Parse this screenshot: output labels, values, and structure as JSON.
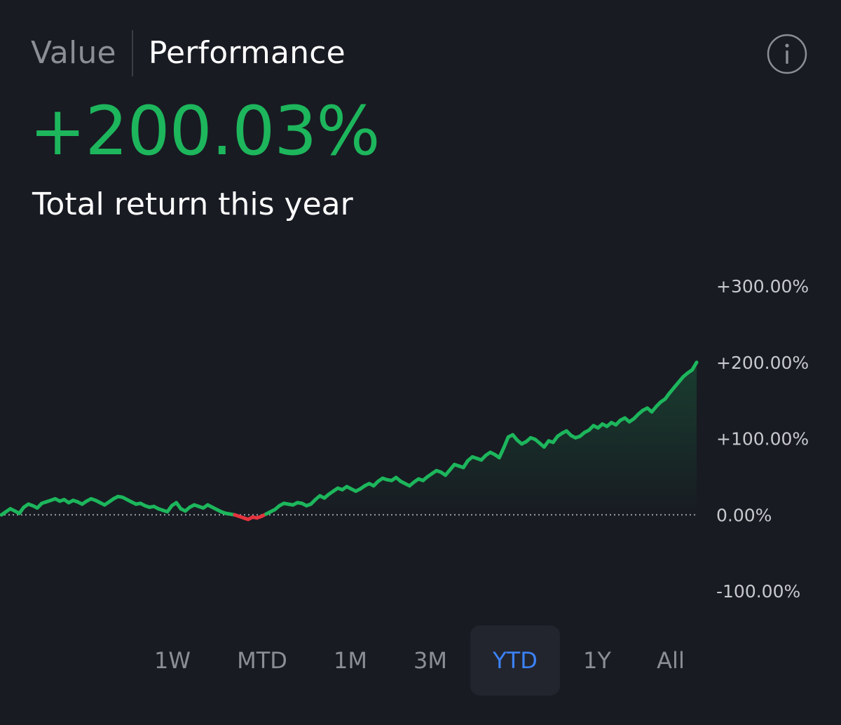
{
  "tabs": [
    {
      "label": "Value",
      "active": false
    },
    {
      "label": "Performance",
      "active": true
    }
  ],
  "info_icon": "info-circle-icon",
  "headline": {
    "value": "+200.03%",
    "caption": "Total return this year"
  },
  "colors": {
    "background": "#181b22",
    "positive": "#1db65c",
    "negative": "#e5343f",
    "accent": "#3b82f6",
    "muted_text": "#8b8e94"
  },
  "ranges": [
    "1W",
    "MTD",
    "1M",
    "3M",
    "YTD",
    "1Y",
    "All"
  ],
  "selected_range": "YTD",
  "chart_data": {
    "type": "line",
    "title": "",
    "xlabel": "",
    "ylabel": "",
    "ylim": [
      -100,
      300
    ],
    "y_ticks": [
      "+300.00%",
      "+200.00%",
      "+100.00%",
      "0.00%",
      "-100.00%"
    ],
    "y_tick_values": [
      300,
      200,
      100,
      0,
      -100
    ],
    "baseline": 0,
    "grid": false,
    "legend": "none",
    "series": [
      {
        "values": [
          0,
          4,
          8,
          5,
          2,
          10,
          14,
          12,
          9,
          15,
          17,
          19,
          21,
          18,
          20,
          16,
          19,
          17,
          14,
          18,
          21,
          19,
          16,
          13,
          17,
          21,
          24,
          23,
          20,
          17,
          14,
          15,
          12,
          10,
          11,
          8,
          6,
          4,
          12,
          16,
          8,
          5,
          10,
          13,
          11,
          9,
          13,
          10,
          7,
          4,
          2,
          1,
          0,
          -2,
          -4,
          -6,
          -3,
          -4,
          -2,
          1,
          4,
          7,
          12,
          15,
          14,
          13,
          16,
          15,
          12,
          14,
          20,
          25,
          22,
          27,
          31,
          35,
          33,
          37,
          34,
          31,
          34,
          38,
          41,
          38,
          44,
          48,
          46,
          45,
          49,
          44,
          41,
          38,
          43,
          47,
          45,
          50,
          54,
          58,
          56,
          52,
          59,
          66,
          64,
          62,
          71,
          76,
          74,
          72,
          78,
          82,
          79,
          75,
          88,
          102,
          105,
          98,
          93,
          96,
          101,
          99,
          94,
          89,
          97,
          95,
          103,
          107,
          110,
          104,
          101,
          103,
          108,
          111,
          117,
          114,
          119,
          116,
          121,
          118,
          124,
          127,
          122,
          126,
          132,
          137,
          140,
          135,
          142,
          148,
          152,
          160,
          167,
          174,
          181,
          186,
          190,
          200
        ]
      }
    ]
  }
}
